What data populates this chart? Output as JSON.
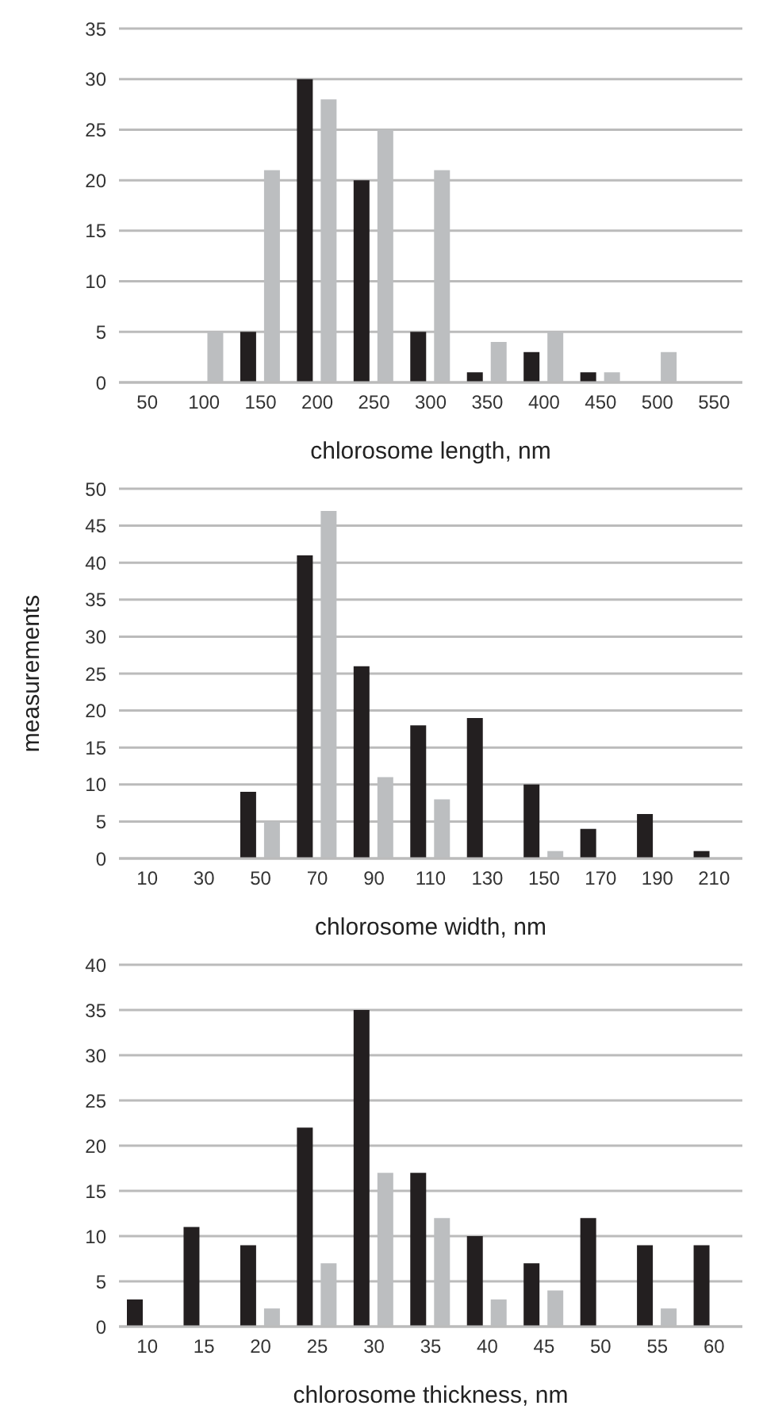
{
  "chart_data": [
    {
      "type": "bar",
      "categories": [
        "50",
        "100",
        "150",
        "200",
        "250",
        "300",
        "350",
        "400",
        "450",
        "500",
        "550"
      ],
      "series": [
        {
          "color": "#231f20",
          "values": [
            0,
            0,
            5,
            30,
            20,
            5,
            1,
            3,
            1,
            0,
            0
          ]
        },
        {
          "color": "#bcbec0",
          "values": [
            0,
            5,
            21,
            28,
            25,
            21,
            4,
            5,
            1,
            3,
            0
          ]
        }
      ],
      "xlabel": "chlorosome length, nm",
      "ylim": [
        0,
        35
      ],
      "yticks": [
        0,
        5,
        10,
        15,
        20,
        25,
        30,
        35
      ],
      "grid": "y"
    },
    {
      "type": "bar",
      "categories": [
        "10",
        "30",
        "50",
        "70",
        "90",
        "110",
        "130",
        "150",
        "170",
        "190",
        "210"
      ],
      "series": [
        {
          "color": "#231f20",
          "values": [
            0,
            0,
            9,
            41,
            26,
            18,
            19,
            10,
            4,
            6,
            1
          ]
        },
        {
          "color": "#bcbec0",
          "values": [
            0,
            0,
            5,
            47,
            11,
            8,
            0,
            1,
            0,
            0,
            0
          ]
        }
      ],
      "xlabel": "chlorosome width, nm",
      "ylabel": "measurements",
      "ylim": [
        0,
        50
      ],
      "yticks": [
        0,
        5,
        10,
        15,
        20,
        25,
        30,
        35,
        40,
        45,
        50
      ],
      "grid": "y"
    },
    {
      "type": "bar",
      "categories": [
        "10",
        "15",
        "20",
        "25",
        "30",
        "35",
        "40",
        "45",
        "50",
        "55",
        "60"
      ],
      "series": [
        {
          "color": "#231f20",
          "values": [
            3,
            11,
            9,
            22,
            35,
            17,
            10,
            7,
            12,
            9,
            9
          ]
        },
        {
          "color": "#bcbec0",
          "values": [
            0,
            0,
            2,
            7,
            17,
            12,
            3,
            4,
            0,
            2,
            0
          ]
        }
      ],
      "xlabel": "chlorosome thickness, nm",
      "ylim": [
        0,
        40
      ],
      "yticks": [
        0,
        5,
        10,
        15,
        20,
        25,
        30,
        35,
        40
      ],
      "grid": "y"
    }
  ]
}
